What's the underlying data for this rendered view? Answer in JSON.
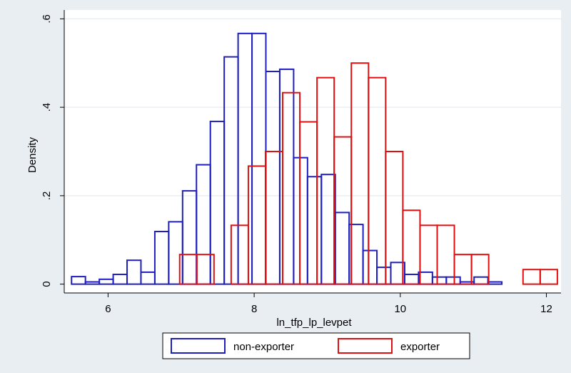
{
  "chart_data": {
    "type": "bar",
    "subtype": "histogram",
    "xlabel": "ln_tfp_lp_levpet",
    "ylabel": "Density",
    "xlim": [
      5.4,
      12.2
    ],
    "ylim": [
      -0.02,
      0.62
    ],
    "x_ticks": [
      6,
      8,
      10,
      12
    ],
    "x_tick_labels": [
      "6",
      "8",
      "10",
      "12"
    ],
    "y_ticks": [
      0,
      0.2,
      0.4,
      0.6
    ],
    "y_tick_labels": [
      "0",
      ".2",
      ".4",
      ".6"
    ],
    "grid": true,
    "legend_position": "bottom",
    "series": [
      {
        "name": "non-exporter",
        "color": "#1f1fbf",
        "bin_width": 0.19,
        "bin_starts": [
          5.5,
          5.69,
          5.88,
          6.07,
          6.26,
          6.45,
          6.64,
          6.83,
          7.02,
          7.21,
          7.4,
          7.59,
          7.78,
          7.97,
          8.16,
          8.35,
          8.54,
          8.73,
          8.92,
          9.11,
          9.3,
          9.49,
          9.68,
          9.87,
          10.06,
          10.25,
          10.44,
          10.63,
          10.82,
          11.01,
          11.2
        ],
        "values": [
          0.017,
          0.005,
          0.011,
          0.022,
          0.054,
          0.027,
          0.119,
          0.141,
          0.211,
          0.27,
          0.368,
          0.514,
          0.567,
          0.567,
          0.481,
          0.486,
          0.286,
          0.243,
          0.248,
          0.162,
          0.135,
          0.076,
          0.038,
          0.049,
          0.022,
          0.027,
          0.016,
          0.016,
          0.005,
          0.016,
          0.005
        ]
      },
      {
        "name": "exporter",
        "color": "#e01010",
        "bin_width": 0.235,
        "bin_starts": [
          6.98,
          7.215,
          7.45,
          7.685,
          7.92,
          8.155,
          8.39,
          8.625,
          8.86,
          9.095,
          9.33,
          9.565,
          9.8,
          10.035,
          10.27,
          10.505,
          10.74,
          10.975,
          11.21,
          11.445,
          11.68,
          11.915
        ],
        "values": [
          0.067,
          0.067,
          0,
          0.133,
          0.267,
          0.3,
          0.433,
          0.367,
          0.467,
          0.333,
          0.5,
          0.467,
          0.3,
          0.167,
          0.133,
          0.133,
          0.067,
          0.067,
          0,
          0,
          0.033,
          0.033
        ]
      }
    ]
  }
}
